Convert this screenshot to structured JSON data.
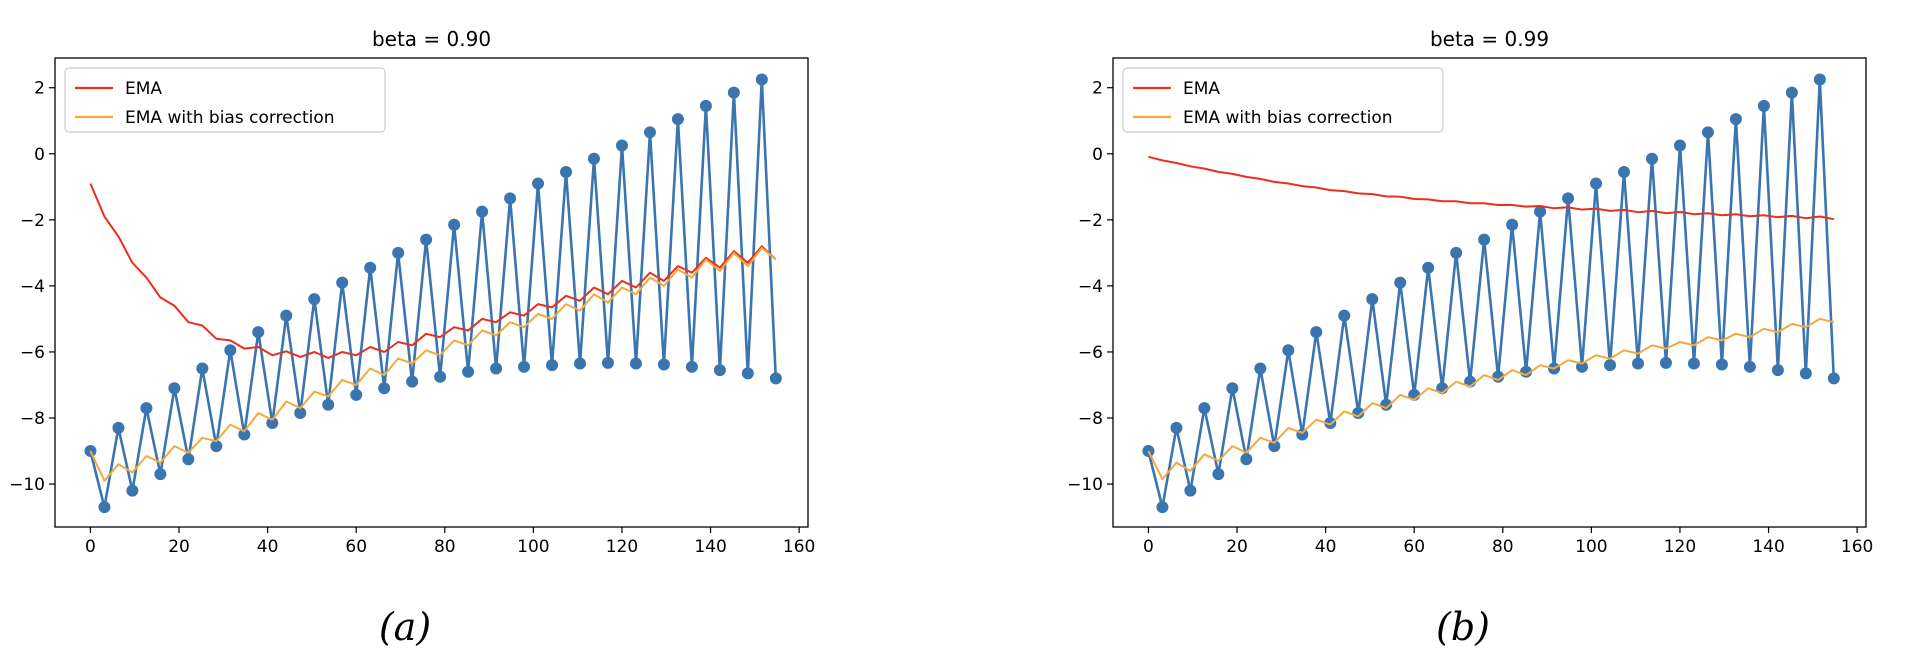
{
  "colors": {
    "data": "#3a75b0",
    "ema": "#e8301f",
    "ema_corrected": "#f4a93c",
    "frame": "#000000",
    "legend_border": "#cccccc"
  },
  "chart_data": [
    {
      "type": "line",
      "title": "beta = 0.90",
      "caption": "(a)",
      "xlabel": "",
      "ylabel": "",
      "xlim": [
        -8,
        162
      ],
      "ylim": [
        -11.3,
        2.9
      ],
      "xticks": [
        0,
        20,
        40,
        60,
        80,
        100,
        120,
        140,
        160
      ],
      "yticks": [
        2,
        0,
        -2,
        -4,
        -6,
        -8,
        -10
      ],
      "grid": false,
      "legend": {
        "position": "top-left",
        "entries": [
          "EMA",
          "EMA with bias correction"
        ]
      },
      "series": [
        {
          "role": "data",
          "marker": "circle",
          "x": [
            0,
            3.16,
            6.32,
            9.47,
            12.63,
            15.79,
            18.95,
            22.11,
            25.26,
            28.42,
            31.58,
            34.74,
            37.89,
            41.05,
            44.21,
            47.37,
            50.53,
            53.68,
            56.84,
            60,
            63.16,
            66.32,
            69.47,
            72.63,
            75.79,
            78.95,
            82.11,
            85.26,
            88.42,
            91.58,
            94.74,
            97.89,
            101.05,
            104.21,
            107.37,
            110.53,
            113.68,
            116.84,
            120,
            123.16,
            126.32,
            129.47,
            132.63,
            135.79,
            138.95,
            142.11,
            145.26,
            148.42,
            151.58,
            154.74
          ],
          "y": [
            -9,
            -10.7,
            -8.3,
            -10.2,
            -7.7,
            -9.7,
            -7.1,
            -9.25,
            -6.5,
            -8.85,
            -5.95,
            -8.5,
            -5.4,
            -8.15,
            -4.9,
            -7.85,
            -4.4,
            -7.6,
            -3.9,
            -7.3,
            -3.45,
            -7.1,
            -3.0,
            -6.9,
            -2.6,
            -6.75,
            -2.15,
            -6.6,
            -1.75,
            -6.5,
            -1.35,
            -6.45,
            -0.9,
            -6.4,
            -0.55,
            -6.35,
            -0.15,
            -6.33,
            0.25,
            -6.35,
            0.65,
            -6.38,
            1.05,
            -6.45,
            1.45,
            -6.55,
            1.85,
            -6.65,
            2.25,
            -6.8
          ]
        },
        {
          "name": "EMA",
          "role": "ema",
          "x": [
            0,
            3.16,
            6.32,
            9.47,
            12.63,
            15.79,
            18.95,
            22.11,
            25.26,
            28.42,
            31.58,
            34.74,
            37.89,
            41.05,
            44.21,
            47.37,
            50.53,
            53.68,
            56.84,
            60,
            63.16,
            66.32,
            69.47,
            72.63,
            75.79,
            78.95,
            82.11,
            85.26,
            88.42,
            91.58,
            94.74,
            97.89,
            101.05,
            104.21,
            107.37,
            110.53,
            113.68,
            116.84,
            120,
            123.16,
            126.32,
            129.47,
            132.63,
            135.79,
            138.95,
            142.11,
            145.26,
            148.42,
            151.58,
            154.74
          ],
          "y": [
            -0.9,
            -1.9,
            -2.5,
            -3.3,
            -3.75,
            -4.35,
            -4.6,
            -5.1,
            -5.2,
            -5.6,
            -5.65,
            -5.9,
            -5.85,
            -6.1,
            -5.98,
            -6.15,
            -6.0,
            -6.18,
            -6.0,
            -6.1,
            -5.85,
            -6.0,
            -5.7,
            -5.8,
            -5.45,
            -5.55,
            -5.25,
            -5.35,
            -5.0,
            -5.1,
            -4.8,
            -4.9,
            -4.55,
            -4.65,
            -4.3,
            -4.45,
            -4.05,
            -4.25,
            -3.85,
            -4.05,
            -3.6,
            -3.85,
            -3.4,
            -3.6,
            -3.15,
            -3.45,
            -2.95,
            -3.3,
            -2.8,
            -3.2
          ]
        },
        {
          "name": "EMA with bias correction",
          "role": "ema_corrected",
          "x": [
            0,
            3.16,
            6.32,
            9.47,
            12.63,
            15.79,
            18.95,
            22.11,
            25.26,
            28.42,
            31.58,
            34.74,
            37.89,
            41.05,
            44.21,
            47.37,
            50.53,
            53.68,
            56.84,
            60,
            63.16,
            66.32,
            69.47,
            72.63,
            75.79,
            78.95,
            82.11,
            85.26,
            88.42,
            91.58,
            94.74,
            97.89,
            101.05,
            104.21,
            107.37,
            110.53,
            113.68,
            116.84,
            120,
            123.16,
            126.32,
            129.47,
            132.63,
            135.79,
            138.95,
            142.11,
            145.26,
            148.42,
            151.58,
            154.74
          ],
          "y": [
            -9.0,
            -9.9,
            -9.4,
            -9.65,
            -9.15,
            -9.35,
            -8.85,
            -9.05,
            -8.6,
            -8.7,
            -8.2,
            -8.4,
            -7.85,
            -8.05,
            -7.5,
            -7.7,
            -7.2,
            -7.35,
            -6.85,
            -7.0,
            -6.5,
            -6.7,
            -6.2,
            -6.35,
            -5.95,
            -6.1,
            -5.65,
            -5.8,
            -5.35,
            -5.5,
            -5.1,
            -5.25,
            -4.85,
            -5.0,
            -4.55,
            -4.75,
            -4.25,
            -4.5,
            -4.05,
            -4.25,
            -3.75,
            -4.0,
            -3.5,
            -3.75,
            -3.2,
            -3.55,
            -3.0,
            -3.4,
            -2.85,
            -3.2
          ]
        }
      ]
    },
    {
      "type": "line",
      "title": "beta = 0.99",
      "caption": "(b)",
      "xlabel": "",
      "ylabel": "",
      "xlim": [
        -8,
        162
      ],
      "ylim": [
        -11.3,
        2.9
      ],
      "xticks": [
        0,
        20,
        40,
        60,
        80,
        100,
        120,
        140,
        160
      ],
      "yticks": [
        2,
        0,
        -2,
        -4,
        -6,
        -8,
        -10
      ],
      "grid": false,
      "legend": {
        "position": "top-left",
        "entries": [
          "EMA",
          "EMA with bias correction"
        ]
      },
      "series": [
        {
          "role": "data",
          "marker": "circle",
          "x": [
            0,
            3.16,
            6.32,
            9.47,
            12.63,
            15.79,
            18.95,
            22.11,
            25.26,
            28.42,
            31.58,
            34.74,
            37.89,
            41.05,
            44.21,
            47.37,
            50.53,
            53.68,
            56.84,
            60,
            63.16,
            66.32,
            69.47,
            72.63,
            75.79,
            78.95,
            82.11,
            85.26,
            88.42,
            91.58,
            94.74,
            97.89,
            101.05,
            104.21,
            107.37,
            110.53,
            113.68,
            116.84,
            120,
            123.16,
            126.32,
            129.47,
            132.63,
            135.79,
            138.95,
            142.11,
            145.26,
            148.42,
            151.58,
            154.74
          ],
          "y": [
            -9,
            -10.7,
            -8.3,
            -10.2,
            -7.7,
            -9.7,
            -7.1,
            -9.25,
            -6.5,
            -8.85,
            -5.95,
            -8.5,
            -5.4,
            -8.15,
            -4.9,
            -7.85,
            -4.4,
            -7.6,
            -3.9,
            -7.3,
            -3.45,
            -7.1,
            -3.0,
            -6.9,
            -2.6,
            -6.75,
            -2.15,
            -6.6,
            -1.75,
            -6.5,
            -1.35,
            -6.45,
            -0.9,
            -6.4,
            -0.55,
            -6.35,
            -0.15,
            -6.33,
            0.25,
            -6.35,
            0.65,
            -6.38,
            1.05,
            -6.45,
            1.45,
            -6.55,
            1.85,
            -6.65,
            2.25,
            -6.8
          ]
        },
        {
          "name": "EMA",
          "role": "ema",
          "x": [
            0,
            3.16,
            6.32,
            9.47,
            12.63,
            15.79,
            18.95,
            22.11,
            25.26,
            28.42,
            31.58,
            34.74,
            37.89,
            41.05,
            44.21,
            47.37,
            50.53,
            53.68,
            56.84,
            60,
            63.16,
            66.32,
            69.47,
            72.63,
            75.79,
            78.95,
            82.11,
            85.26,
            88.42,
            91.58,
            94.74,
            97.89,
            101.05,
            104.21,
            107.37,
            110.53,
            113.68,
            116.84,
            120,
            123.16,
            126.32,
            129.47,
            132.63,
            135.79,
            138.95,
            142.11,
            145.26,
            148.42,
            151.58,
            154.74
          ],
          "y": [
            -0.09,
            -0.2,
            -0.28,
            -0.38,
            -0.45,
            -0.55,
            -0.61,
            -0.7,
            -0.76,
            -0.85,
            -0.9,
            -0.98,
            -1.02,
            -1.1,
            -1.13,
            -1.2,
            -1.22,
            -1.29,
            -1.3,
            -1.37,
            -1.38,
            -1.44,
            -1.44,
            -1.5,
            -1.5,
            -1.55,
            -1.55,
            -1.6,
            -1.58,
            -1.65,
            -1.62,
            -1.69,
            -1.66,
            -1.73,
            -1.7,
            -1.77,
            -1.73,
            -1.8,
            -1.76,
            -1.83,
            -1.8,
            -1.86,
            -1.83,
            -1.89,
            -1.86,
            -1.92,
            -1.88,
            -1.95,
            -1.9,
            -1.98
          ]
        },
        {
          "name": "EMA with bias correction",
          "role": "ema_corrected",
          "x": [
            0,
            3.16,
            6.32,
            9.47,
            12.63,
            15.79,
            18.95,
            22.11,
            25.26,
            28.42,
            31.58,
            34.74,
            37.89,
            41.05,
            44.21,
            47.37,
            50.53,
            53.68,
            56.84,
            60,
            63.16,
            66.32,
            69.47,
            72.63,
            75.79,
            78.95,
            82.11,
            85.26,
            88.42,
            91.58,
            94.74,
            97.89,
            101.05,
            104.21,
            107.37,
            110.53,
            113.68,
            116.84,
            120,
            123.16,
            126.32,
            129.47,
            132.63,
            135.79,
            138.95,
            142.11,
            145.26,
            148.42,
            151.58,
            154.74
          ],
          "y": [
            -9.0,
            -9.85,
            -9.35,
            -9.6,
            -9.1,
            -9.3,
            -8.85,
            -9.05,
            -8.6,
            -8.75,
            -8.3,
            -8.45,
            -8.05,
            -8.2,
            -7.8,
            -7.95,
            -7.55,
            -7.7,
            -7.3,
            -7.45,
            -7.1,
            -7.25,
            -6.9,
            -7.05,
            -6.7,
            -6.85,
            -6.55,
            -6.7,
            -6.4,
            -6.5,
            -6.25,
            -6.35,
            -6.1,
            -6.2,
            -5.95,
            -6.05,
            -5.8,
            -5.9,
            -5.7,
            -5.8,
            -5.55,
            -5.65,
            -5.45,
            -5.55,
            -5.3,
            -5.4,
            -5.15,
            -5.25,
            -5.0,
            -5.1
          ]
        }
      ]
    }
  ]
}
